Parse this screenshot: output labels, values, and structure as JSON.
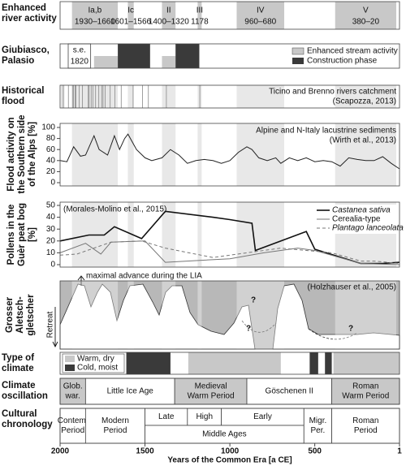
{
  "x_axis": {
    "title": "Years of the Common Era [a CE]",
    "xlim": [
      2000,
      1
    ],
    "xticks": [
      2000,
      1500,
      1000,
      500,
      1
    ]
  },
  "river_activity": {
    "label": [
      "Enhanced",
      "river activity"
    ],
    "color": "#c8c8c8",
    "band_color": "#e8e8e8",
    "periods": [
      {
        "name": "Ia,b",
        "dates": "1930–1660",
        "start": 1930,
        "end": 1660
      },
      {
        "name": "Ic",
        "dates": "1601–1566",
        "start": 1601,
        "end": 1566
      },
      {
        "name": "II",
        "dates": "1400–1320",
        "start": 1400,
        "end": 1320
      },
      {
        "name": "III",
        "dates": "1178",
        "start": 1178,
        "end": 1178
      },
      {
        "name": "IV",
        "dates": "960–680",
        "start": 960,
        "end": 680
      },
      {
        "name": "V",
        "dates": "380–20",
        "start": 380,
        "end": 20
      }
    ]
  },
  "giubiasco": {
    "label": [
      "Giubiasco,",
      "Palasio"
    ],
    "se": {
      "label": "s.e.",
      "year": 1820
    },
    "enhanced": {
      "name": "Enhanced stream activity",
      "color": "#c8c8c8",
      "periods": [
        [
          1800,
          1660
        ],
        [
          1400,
          1320
        ]
      ]
    },
    "construction": {
      "name": "Construction phase",
      "color": "#3a3a3a",
      "periods": [
        [
          1660,
          1470
        ],
        [
          1320,
          1180
        ]
      ]
    }
  },
  "historical_flood": {
    "label": [
      "Historical",
      "flood"
    ],
    "source": [
      "Ticino and Brenno rivers catchment",
      "(Scapozza, 2013)"
    ],
    "color": "#888888",
    "years": [
      1987,
      1978,
      1951,
      1927,
      1921,
      1911,
      1907,
      1888,
      1868,
      1834,
      1829,
      1817,
      1807,
      1791,
      1772,
      1755,
      1747,
      1735,
      1705,
      1677,
      1640,
      1570,
      1515,
      1480,
      1374,
      1177
    ]
  },
  "flood_activity": {
    "type": "line",
    "ylabel": [
      "Flood activity on",
      "the Southern side",
      "of the Alps [%]"
    ],
    "annotation": [
      "Alpine and N-Italy lacustrine sediments",
      "(Wirth et al., 2013)"
    ],
    "color": "#222222",
    "ylim": [
      0,
      100
    ],
    "yticks": [
      0,
      20,
      40,
      60,
      80,
      100
    ],
    "x": [
      2000,
      1960,
      1920,
      1880,
      1850,
      1800,
      1770,
      1720,
      1680,
      1650,
      1620,
      1600,
      1550,
      1500,
      1460,
      1400,
      1350,
      1300,
      1250,
      1200,
      1150,
      1100,
      1050,
      1000,
      950,
      900,
      870,
      830,
      780,
      730,
      700,
      650,
      600,
      550,
      500,
      450,
      400,
      350,
      300,
      250,
      200,
      150,
      100,
      50,
      1
    ],
    "values": [
      40,
      38,
      65,
      48,
      50,
      85,
      60,
      50,
      85,
      60,
      80,
      88,
      60,
      45,
      40,
      45,
      60,
      50,
      35,
      40,
      42,
      40,
      35,
      40,
      55,
      65,
      60,
      45,
      40,
      45,
      35,
      45,
      40,
      45,
      38,
      40,
      38,
      30,
      45,
      42,
      40,
      40,
      47,
      35,
      25
    ]
  },
  "pollen": {
    "type": "line",
    "ylabel": [
      "Pollens in the",
      "Guèr peat bog",
      "[%]"
    ],
    "annotation": "(Morales-Molino et al., 2015)",
    "ylim": [
      0,
      50
    ],
    "yticks": [
      0,
      10,
      20,
      30,
      40,
      50
    ],
    "series": [
      {
        "name": "Castanea sativa",
        "color": "#111111",
        "style": "solid",
        "x": [
          2000,
          1830,
          1740,
          1680,
          1520,
          1380,
          1100,
          1000,
          870,
          850,
          550,
          500,
          230,
          100,
          1
        ],
        "values": [
          20,
          25,
          25,
          32,
          22,
          45,
          40,
          38,
          35,
          12,
          28,
          13,
          1,
          1,
          2
        ]
      },
      {
        "name": "Cerealia-type",
        "color": "#777777",
        "style": "solid",
        "x": [
          2000,
          1850,
          1760,
          1700,
          1500,
          1380,
          1000,
          800,
          600,
          500,
          230,
          1
        ],
        "values": [
          10,
          18,
          9,
          19,
          20,
          2,
          5,
          10,
          14,
          12,
          1,
          0
        ]
      },
      {
        "name": "Plantago lanceolata type",
        "color": "#777777",
        "style": "dashed",
        "x": [
          2000,
          1900,
          1780,
          1700,
          1520,
          1380,
          1100,
          700,
          400,
          230,
          150,
          1
        ],
        "values": [
          8,
          9,
          15,
          19,
          20,
          14,
          6,
          14,
          10,
          3,
          3,
          1
        ]
      }
    ]
  },
  "glacier": {
    "label": [
      "Grosser",
      "Aletsch-",
      "gletscher"
    ],
    "retreat": "Retreat",
    "annotation": "maximal advance during the LIA",
    "source": "(Holzhauser et al., 2005)",
    "questions": [
      "?",
      "?",
      "?"
    ]
  },
  "climate_type": {
    "label": [
      "Type of",
      "climate"
    ],
    "warm": {
      "name": "Warm, dry",
      "color": "#c8c8c8",
      "periods": [
        [
          1245,
          700
        ],
        [
          390,
          1
        ]
      ]
    },
    "cold": {
      "name": "Cold, moist",
      "color": "#3a3a3a",
      "periods": [
        [
          1610,
          1350
        ],
        [
          530,
          480
        ],
        [
          440,
          400
        ]
      ]
    }
  },
  "climate_oscillation": {
    "label": [
      "Climate",
      "oscillation"
    ],
    "warm_color": "#c8c8c8",
    "periods": [
      {
        "name": [
          "Glob.",
          "war."
        ],
        "start": 2000,
        "end": 1850,
        "warm": true
      },
      {
        "name": [
          "Little Ice Age"
        ],
        "start": 1850,
        "end": 1325,
        "warm": false
      },
      {
        "name": [
          "Medieval",
          "Warm Period"
        ],
        "start": 1325,
        "end": 900,
        "warm": true
      },
      {
        "name": [
          "Göschenen II"
        ],
        "start": 900,
        "end": 400,
        "warm": false
      },
      {
        "name": [
          "Roman",
          "Warm Period"
        ],
        "start": 400,
        "end": 1,
        "warm": true
      }
    ]
  },
  "cultural_chronology": {
    "label": [
      "Cultural",
      "chronology"
    ],
    "periods": [
      {
        "name": [
          "Contem.",
          "Period"
        ],
        "start": 2000,
        "end": 1850,
        "row": "full"
      },
      {
        "name": [
          "Modern",
          "Period"
        ],
        "start": 1850,
        "end": 1500,
        "row": "full"
      },
      {
        "name": [
          "Late"
        ],
        "start": 1500,
        "end": 1250,
        "row": "top"
      },
      {
        "name": [
          "High"
        ],
        "start": 1250,
        "end": 1050,
        "row": "top"
      },
      {
        "name": [
          "Early"
        ],
        "start": 1050,
        "end": 564,
        "row": "top"
      },
      {
        "name": [
          "Middle Ages"
        ],
        "start": 1500,
        "end": 564,
        "row": "bottom"
      },
      {
        "name": [
          "Migr.",
          "Per."
        ],
        "start": 564,
        "end": 400,
        "row": "full"
      },
      {
        "name": [
          "Roman",
          "Period"
        ],
        "start": 400,
        "end": 1,
        "row": "full"
      }
    ]
  }
}
